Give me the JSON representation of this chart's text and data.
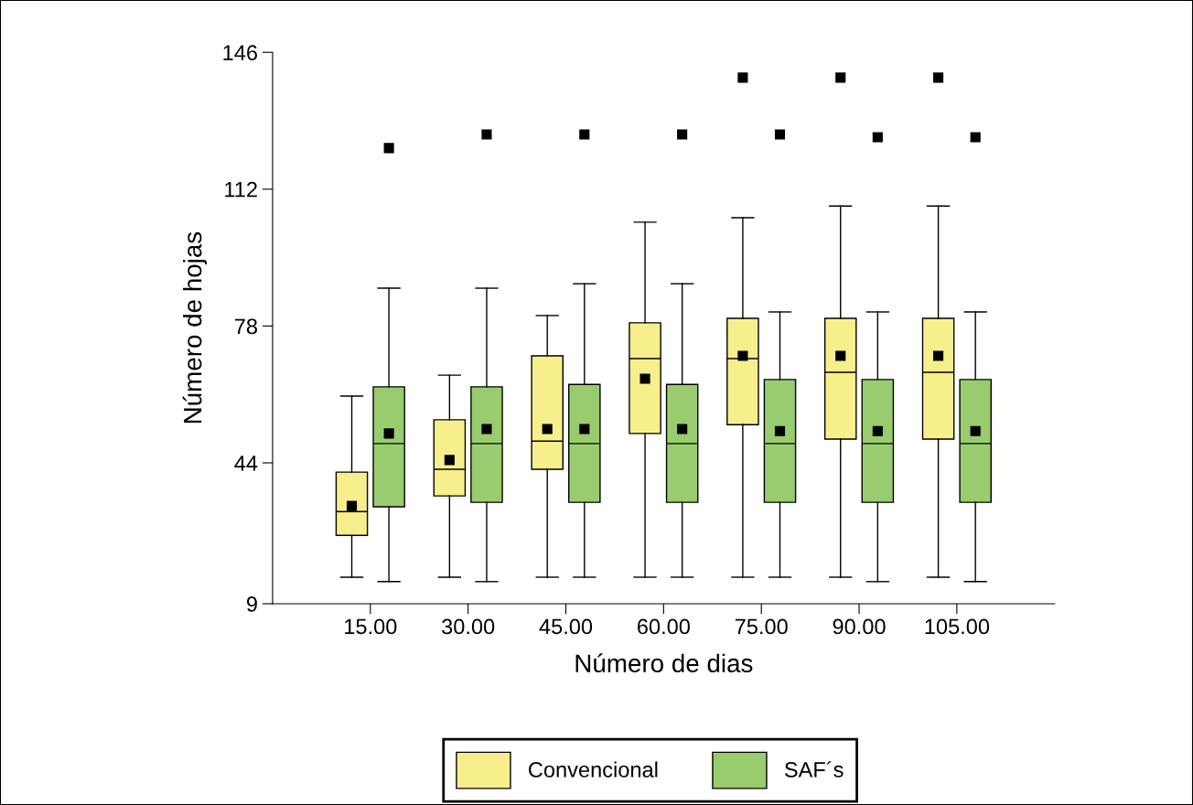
{
  "chart_data": {
    "type": "box",
    "xlabel": "Número de dias",
    "ylabel": "Número de hojas",
    "categories": [
      "15.00",
      "30.00",
      "45.00",
      "60.00",
      "75.00",
      "90.00",
      "105.00"
    ],
    "ylim": [
      9,
      146
    ],
    "yticks": [
      9,
      44,
      78,
      112,
      146
    ],
    "grid": false,
    "legend": "bottom",
    "marker": "square",
    "series": [
      {
        "name": "Convencional",
        "color": "#f7ef8c",
        "boxes": [
          {
            "low": 15.6,
            "q1": 26.0,
            "median": 31.9,
            "q3": 41.7,
            "high": 60.6,
            "mean": 33.3
          },
          {
            "low": 15.6,
            "q1": 35.8,
            "median": 42.4,
            "q3": 54.7,
            "high": 65.8,
            "mean": 44.7
          },
          {
            "low": 15.6,
            "q1": 42.4,
            "median": 49.4,
            "q3": 70.6,
            "high": 80.6,
            "mean": 52.4
          },
          {
            "low": 15.6,
            "q1": 51.3,
            "median": 69.9,
            "q3": 78.8,
            "high": 103.8,
            "mean": 64.9
          },
          {
            "low": 15.6,
            "q1": 53.5,
            "median": 69.9,
            "q3": 79.9,
            "high": 104.9,
            "mean": 70.6,
            "outliers": [
              139.7
            ]
          },
          {
            "low": 15.6,
            "q1": 49.9,
            "median": 66.5,
            "q3": 79.9,
            "high": 107.8,
            "mean": 70.6,
            "outliers": [
              139.7
            ]
          },
          {
            "low": 15.6,
            "q1": 49.9,
            "median": 66.5,
            "q3": 79.9,
            "high": 107.8,
            "mean": 70.6,
            "outliers": [
              139.7
            ]
          }
        ]
      },
      {
        "name": "SAF´s",
        "color": "#99cc6e",
        "boxes": [
          {
            "low": 14.5,
            "q1": 33.1,
            "median": 48.8,
            "q3": 62.9,
            "high": 87.4,
            "mean": 51.3,
            "outliers": [
              122.2
            ]
          },
          {
            "low": 14.5,
            "q1": 34.2,
            "median": 48.8,
            "q3": 62.9,
            "high": 87.4,
            "mean": 52.4,
            "outliers": [
              125.6
            ]
          },
          {
            "low": 15.6,
            "q1": 34.2,
            "median": 48.8,
            "q3": 63.5,
            "high": 88.5,
            "mean": 52.4,
            "outliers": [
              125.6
            ]
          },
          {
            "low": 15.6,
            "q1": 34.2,
            "median": 48.8,
            "q3": 63.5,
            "high": 88.5,
            "mean": 52.4,
            "outliers": [
              125.6
            ]
          },
          {
            "low": 15.6,
            "q1": 34.2,
            "median": 48.8,
            "q3": 64.7,
            "high": 81.5,
            "mean": 51.9,
            "outliers": [
              125.6
            ]
          },
          {
            "low": 14.5,
            "q1": 34.2,
            "median": 48.8,
            "q3": 64.7,
            "high": 81.5,
            "mean": 51.9,
            "outliers": [
              124.9
            ]
          },
          {
            "low": 14.5,
            "q1": 34.2,
            "median": 48.8,
            "q3": 64.7,
            "high": 81.5,
            "mean": 51.9,
            "outliers": [
              124.9
            ]
          }
        ]
      }
    ]
  }
}
